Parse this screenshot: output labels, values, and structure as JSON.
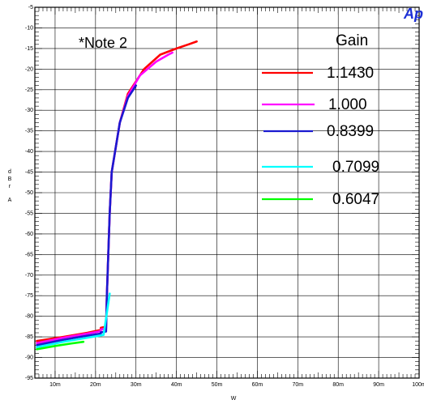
{
  "chart_data": {
    "type": "line",
    "brand": "Ap",
    "brand_color": "#1c2fd6",
    "annotation": "*Note 2",
    "legend_title": "Gain",
    "legend_position": "top-right",
    "xlabel": "W",
    "ylabel": "d B r A",
    "xlim": [
      0.005,
      0.1
    ],
    "ylim": [
      -95,
      -5
    ],
    "x_ticks": [
      {
        "value": 0.01,
        "label": "10m"
      },
      {
        "value": 0.02,
        "label": "20m"
      },
      {
        "value": 0.03,
        "label": "30m"
      },
      {
        "value": 0.04,
        "label": "40m"
      },
      {
        "value": 0.05,
        "label": "50m"
      },
      {
        "value": 0.06,
        "label": "60m"
      },
      {
        "value": 0.07,
        "label": "70m"
      },
      {
        "value": 0.08,
        "label": "80m"
      },
      {
        "value": 0.09,
        "label": "90m"
      },
      {
        "value": 0.1,
        "label": "100m"
      }
    ],
    "y_ticks": [
      {
        "value": -5,
        "label": "-5"
      },
      {
        "value": -10,
        "label": "-10"
      },
      {
        "value": -15,
        "label": "-15"
      },
      {
        "value": -20,
        "label": "-20"
      },
      {
        "value": -25,
        "label": "-25"
      },
      {
        "value": -30,
        "label": "-30"
      },
      {
        "value": -35,
        "label": "-35"
      },
      {
        "value": -40,
        "label": "-40"
      },
      {
        "value": -45,
        "label": "-45"
      },
      {
        "value": -50,
        "label": "-50"
      },
      {
        "value": -55,
        "label": "-55"
      },
      {
        "value": -60,
        "label": "-60"
      },
      {
        "value": -65,
        "label": "-65"
      },
      {
        "value": -70,
        "label": "-70"
      },
      {
        "value": -75,
        "label": "-75"
      },
      {
        "value": -80,
        "label": "-80"
      },
      {
        "value": -85,
        "label": "-85"
      },
      {
        "value": -90,
        "label": "-90"
      },
      {
        "value": -95,
        "label": "-95"
      }
    ],
    "grid": true,
    "series": [
      {
        "name": "1.1430",
        "color": "#ff0000",
        "x": [
          0.0055,
          0.012,
          0.018,
          0.0213,
          0.0213,
          0.0226,
          0.0228,
          0.0235,
          0.024,
          0.026,
          0.028,
          0.032,
          0.036,
          0.04,
          0.043,
          0.045
        ],
        "y": [
          -86,
          -85,
          -84,
          -83.3,
          -82.8,
          -82.5,
          -75,
          -55,
          -45,
          -33,
          -26,
          -20,
          -16.5,
          -15,
          -14,
          -13.3
        ]
      },
      {
        "name": "1.000",
        "color": "#ff00ff",
        "x": [
          0.0055,
          0.012,
          0.018,
          0.0213,
          0.0213,
          0.0226,
          0.0228,
          0.0235,
          0.024,
          0.026,
          0.028,
          0.031,
          0.035,
          0.038,
          0.039
        ],
        "y": [
          -86.5,
          -85.2,
          -84.2,
          -83.6,
          -83.2,
          -83,
          -75,
          -55,
          -45,
          -33,
          -26.5,
          -21.5,
          -18.2,
          -16.5,
          -16
        ]
      },
      {
        "name": "0.8399",
        "color": "#1a1ad0",
        "x": [
          0.0055,
          0.012,
          0.018,
          0.0213,
          0.0213,
          0.0226,
          0.0228,
          0.0235,
          0.024,
          0.026,
          0.028,
          0.03
        ],
        "y": [
          -87,
          -85.7,
          -84.7,
          -84.2,
          -83.9,
          -83.7,
          -75,
          -55,
          -45,
          -33,
          -27,
          -24
        ]
      },
      {
        "name": "0.7099",
        "color": "#00ffff",
        "x": [
          0.0055,
          0.012,
          0.018,
          0.021,
          0.022,
          0.0235
        ],
        "y": [
          -87.5,
          -86.2,
          -85.2,
          -84.7,
          -84.5,
          -74.5
        ]
      },
      {
        "name": "0.6047",
        "color": "#00ff00",
        "x": [
          0.0055,
          0.01,
          0.014,
          0.017
        ],
        "y": [
          -88,
          -87.2,
          -86.6,
          -86.2
        ]
      }
    ]
  }
}
